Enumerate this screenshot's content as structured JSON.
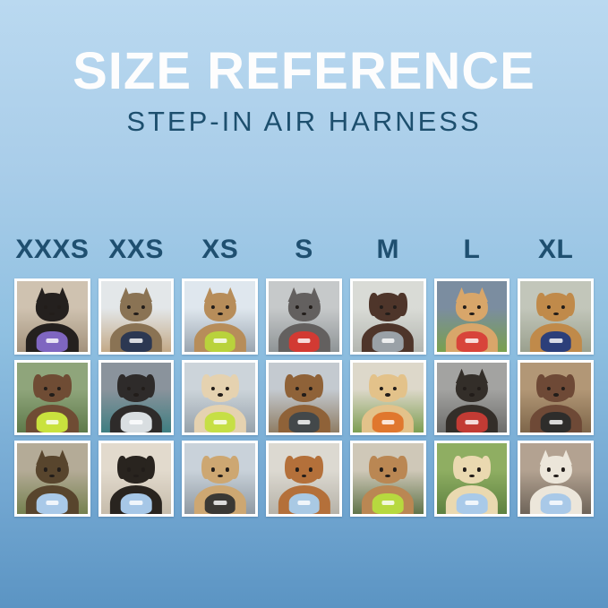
{
  "page": {
    "title": "SIZE REFERENCE",
    "subtitle": "STEP-IN AIR HARNESS",
    "background_top": "#bad9f0",
    "background_bottom": "#5b94c3",
    "title_color": "#fdfdfd",
    "ink_color": "#1f4f70"
  },
  "sizes": [
    "XXXS",
    "XXS",
    "XS",
    "S",
    "M",
    "L",
    "XL"
  ],
  "grid": {
    "rows": [
      {
        "cells": [
          {
            "size": "XXXS",
            "pet": "black kitten wearing purple harness indoors",
            "ears": "pointed",
            "colors": {
              "bg1": "#cfc2b0",
              "bg2": "#a3927c",
              "fur": "#24201e",
              "harness": "#7f66c0"
            }
          },
          {
            "size": "XXS",
            "pet": "tabby cat wearing navy harness looking out window",
            "ears": "pointed",
            "colors": {
              "bg1": "#e3e7e9",
              "bg2": "#c3a987",
              "fur": "#8a7354",
              "harness": "#2c3852"
            }
          },
          {
            "size": "XS",
            "pet": "bengal cat wearing neon green harness in car",
            "ears": "pointed",
            "colors": {
              "bg1": "#dfe7ee",
              "bg2": "#9aa5b0",
              "fur": "#b78d5a",
              "harness": "#b9d23c"
            }
          },
          {
            "size": "S",
            "pet": "gray french bulldog wearing red harness on street",
            "ears": "pointed",
            "colors": {
              "bg1": "#c6c9ca",
              "bg2": "#8f9496",
              "fur": "#63605f",
              "harness": "#d23a33"
            }
          },
          {
            "size": "M",
            "pet": "chocolate long-haired dachshund wearing gray harness",
            "ears": "floppy",
            "colors": {
              "bg1": "#d9dbd6",
              "bg2": "#b3b6b0",
              "fur": "#4e352a",
              "harness": "#9aa1a7"
            }
          },
          {
            "size": "L",
            "pet": "shiba inu with red ball wearing red harness on grass",
            "ears": "pointed",
            "colors": {
              "bg1": "#7b8da0",
              "bg2": "#79a04e",
              "fur": "#d8a66a",
              "harness": "#d8443a"
            }
          },
          {
            "size": "XL",
            "pet": "golden retriever wearing navy harness on path",
            "ears": "floppy",
            "colors": {
              "bg1": "#c2c6ba",
              "bg2": "#9aa08e",
              "fur": "#c08a4a",
              "harness": "#2c3f7a"
            }
          }
        ]
      },
      {
        "cells": [
          {
            "size": "XXXS",
            "pet": "chocolate dapple dachshund puppy wearing neon green harness",
            "ears": "floppy",
            "colors": {
              "bg1": "#8fa57b",
              "bg2": "#5f7a4a",
              "fur": "#6f4c34",
              "harness": "#c9e23e"
            }
          },
          {
            "size": "XXS",
            "pet": "black puppy wearing light gray harness on teal blanket",
            "ears": "floppy",
            "colors": {
              "bg1": "#8a939c",
              "bg2": "#3f7e81",
              "fur": "#2e2b2a",
              "harness": "#d9dee1"
            }
          },
          {
            "size": "XS",
            "pet": "cream spaniel wearing neon green harness on boat",
            "ears": "floppy",
            "colors": {
              "bg1": "#ccd4da",
              "bg2": "#97a2ab",
              "fur": "#e5d2b0",
              "harness": "#c6df45"
            }
          },
          {
            "size": "S",
            "pet": "brown dachshund wearing dark harness on boardwalk",
            "ears": "floppy",
            "colors": {
              "bg1": "#c4cad0",
              "bg2": "#8f7d64",
              "fur": "#8f6238",
              "harness": "#43484a"
            }
          },
          {
            "size": "M",
            "pet": "smiling golden puppy wearing orange harness",
            "ears": "floppy",
            "colors": {
              "bg1": "#ddd8ca",
              "bg2": "#7d9e52",
              "fur": "#e3c28a",
              "harness": "#e0772e"
            }
          },
          {
            "size": "L",
            "pet": "black and tan dog wearing red harness in metal tunnel",
            "ears": "pointed",
            "colors": {
              "bg1": "#a3a3a1",
              "bg2": "#6d6d6b",
              "fur": "#332e29",
              "harness": "#c23b34"
            }
          },
          {
            "size": "XL",
            "pet": "brown and white dog wearing black harness on wooden steps",
            "ears": "floppy",
            "colors": {
              "bg1": "#b29776",
              "bg2": "#7e664a",
              "fur": "#6e4936",
              "harness": "#2e2d2b"
            }
          }
        ]
      },
      {
        "cells": [
          {
            "size": "XXXS",
            "pet": "yorkshire terrier puppy wearing light blue harness",
            "ears": "pointed",
            "colors": {
              "bg1": "#b4ab97",
              "bg2": "#75814f",
              "fur": "#58452d",
              "harness": "#a9c9e8"
            }
          },
          {
            "size": "XXS",
            "pet": "black and tan dachshund wearing light blue harness on couch",
            "ears": "floppy",
            "colors": {
              "bg1": "#e2dacd",
              "bg2": "#c6bcab",
              "fur": "#29241f",
              "harness": "#a6c7e7"
            }
          },
          {
            "size": "XS",
            "pet": "apricot doodle puppy wearing black harness on boardwalk",
            "ears": "floppy",
            "colors": {
              "bg1": "#c9d2da",
              "bg2": "#8f99a2",
              "fur": "#cda772",
              "harness": "#3a3834"
            }
          },
          {
            "size": "S",
            "pet": "red dachshund wearing light blue harness on pavement",
            "ears": "floppy",
            "colors": {
              "bg1": "#dcd9d1",
              "bg2": "#b6b2a8",
              "fur": "#b4703a",
              "harness": "#a9c9e4"
            }
          },
          {
            "size": "M",
            "pet": "apricot poodle wearing neon green harness on path",
            "ears": "floppy",
            "colors": {
              "bg1": "#cfc8b8",
              "bg2": "#60744a",
              "fur": "#ba8753",
              "harness": "#b7d93f"
            }
          },
          {
            "size": "L",
            "pet": "cream golden puppy wearing light blue harness and leash on grass",
            "ears": "floppy",
            "colors": {
              "bg1": "#8fae62",
              "bg2": "#5d8140",
              "fur": "#ead9b0",
              "harness": "#a9cae9"
            }
          },
          {
            "size": "XL",
            "pet": "white shepherd wearing light blue harness on city sidewalk",
            "ears": "pointed",
            "colors": {
              "bg1": "#b3a291",
              "bg2": "#6e6459",
              "fur": "#ece6da",
              "harness": "#a9c9e8"
            }
          }
        ]
      }
    ]
  }
}
